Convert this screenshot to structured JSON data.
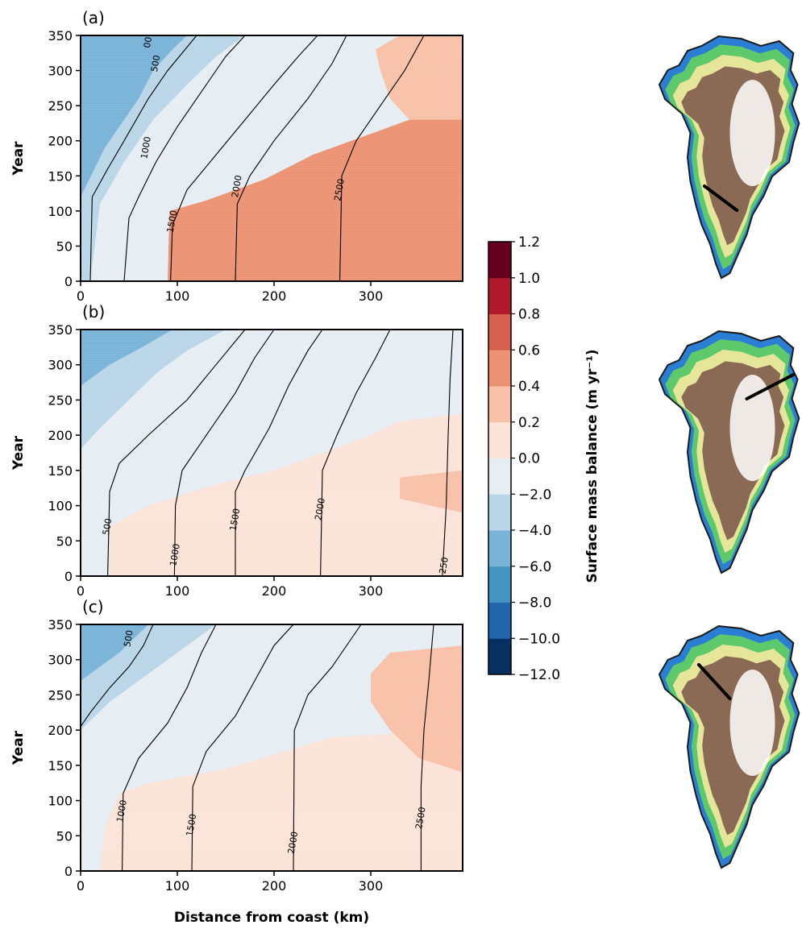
{
  "colors": {
    "smb_scale": [
      "#053061",
      "#2166ac",
      "#4393c3",
      "#79b3d8",
      "#b9d6e8",
      "#e6edf3",
      "#fbe3d8",
      "#f8c1a8",
      "#ec9272",
      "#d6604d",
      "#b2182b",
      "#67001f"
    ],
    "contour": "#000000",
    "map_ocean_edge": "#1a1a1a",
    "map_coast": "#2a7fd4",
    "map_green": "#5ec96b",
    "map_yellow": "#e6e69a",
    "map_brown": "#8a6a55",
    "map_white": "#ffffff",
    "transect": "#000000"
  },
  "chart_data": [
    {
      "type": "heatmap",
      "panel_label": "(a)",
      "xlabel": "",
      "ylabel": "Year",
      "xlim": [
        0,
        395
      ],
      "ylim": [
        0,
        350
      ],
      "xticks": [
        "0",
        "100",
        "200",
        "300"
      ],
      "yticks": [
        "0",
        "50",
        "100",
        "150",
        "200",
        "250",
        "300",
        "350"
      ],
      "zones": [
        {
          "class": 6,
          "boundary": [
            [
              560,
              0
            ],
            [
              560,
              350
            ]
          ]
        },
        {
          "class": 7,
          "boundary": [
            [
              395,
              0
            ],
            [
              395,
              200
            ],
            [
              340,
              230
            ],
            [
              320,
              260
            ],
            [
              310,
              300
            ],
            [
              305,
              330
            ],
            [
              330,
              350
            ]
          ]
        },
        {
          "class": 8,
          "boundary": [
            [
              90,
              0
            ],
            [
              92,
              100
            ],
            [
              130,
              115
            ],
            [
              190,
              145
            ],
            [
              240,
              180
            ],
            [
              280,
              200
            ],
            [
              340,
              230
            ],
            [
              395,
              230
            ]
          ]
        },
        {
          "class": 5,
          "boundary": [
            [
              45,
              0
            ],
            [
              60,
              110
            ],
            [
              80,
              170
            ],
            [
              110,
              230
            ],
            [
              150,
              280
            ],
            [
              185,
              320
            ],
            [
              215,
              350
            ]
          ]
        },
        {
          "class": 4,
          "boundary": [
            [
              10,
              0
            ],
            [
              20,
              110
            ],
            [
              45,
              170
            ],
            [
              75,
              230
            ],
            [
              110,
              280
            ],
            [
              140,
              320
            ],
            [
              170,
              350
            ]
          ]
        },
        {
          "class": 3,
          "boundary": [
            [
              0,
              120
            ],
            [
              25,
              190
            ],
            [
              60,
              260
            ],
            [
              75,
              300
            ],
            [
              95,
              330
            ],
            [
              110,
              350
            ]
          ]
        }
      ],
      "contours": [
        {
          "label": "1000",
          "points": [
            [
              10,
              0
            ],
            [
              12,
              120
            ],
            [
              28,
              160
            ],
            [
              45,
              200
            ],
            [
              70,
              260
            ],
            [
              90,
              300
            ],
            [
              120,
              350
            ]
          ]
        },
        {
          "label": "1500",
          "points": [
            [
              45,
              0
            ],
            [
              50,
              90
            ],
            [
              60,
              120
            ],
            [
              78,
              170
            ],
            [
              100,
              220
            ],
            [
              130,
              280
            ],
            [
              150,
              320
            ],
            [
              170,
              350
            ]
          ]
        },
        {
          "label": "2000",
          "points": [
            [
              93,
              0
            ],
            [
              95,
              80
            ],
            [
              110,
              130
            ],
            [
              140,
              180
            ],
            [
              170,
              230
            ],
            [
              200,
              280
            ],
            [
              225,
              320
            ],
            [
              245,
              350
            ]
          ]
        },
        {
          "label": "2500",
          "points": [
            [
              160,
              0
            ],
            [
              162,
              110
            ],
            [
              175,
              150
            ],
            [
              200,
              200
            ],
            [
              235,
              260
            ],
            [
              260,
              310
            ],
            [
              275,
              350
            ]
          ]
        },
        {
          "label": "",
          "points": [
            [
              268,
              0
            ],
            [
              270,
              150
            ],
            [
              285,
              200
            ],
            [
              310,
              250
            ],
            [
              335,
              300
            ],
            [
              355,
              350
            ]
          ]
        }
      ],
      "contour_label_positions": [
        {
          "text": "00",
          "x": 70,
          "y": 340
        },
        {
          "text": "500",
          "x": 78,
          "y": 310
        },
        {
          "text": "1000",
          "x": 68,
          "y": 190
        },
        {
          "text": "1500",
          "x": 95,
          "y": 85
        },
        {
          "text": "2000",
          "x": 162,
          "y": 135
        },
        {
          "text": "2500",
          "x": 268,
          "y": 130
        }
      ]
    },
    {
      "type": "heatmap",
      "panel_label": "(b)",
      "xlabel": "",
      "ylabel": "Year",
      "xlim": [
        0,
        395
      ],
      "ylim": [
        0,
        350
      ],
      "xticks": [
        "0",
        "100",
        "200",
        "300"
      ],
      "yticks": [
        "0",
        "50",
        "100",
        "150",
        "200",
        "250",
        "300",
        "350"
      ],
      "zones": [
        {
          "class": 6,
          "boundary": [
            [
              30,
              0
            ],
            [
              30,
              70
            ],
            [
              70,
              100
            ],
            [
              140,
              130
            ],
            [
              200,
              150
            ],
            [
              260,
              180
            ],
            [
              300,
              200
            ],
            [
              330,
              220
            ],
            [
              395,
              230
            ]
          ]
        },
        {
          "class": 7,
          "boundary": [
            [
              395,
              90
            ],
            [
              330,
              110
            ],
            [
              330,
              140
            ],
            [
              395,
              150
            ]
          ]
        },
        {
          "class": 5,
          "boundary": [
            [
              0,
              140
            ],
            [
              40,
              160
            ],
            [
              80,
              190
            ],
            [
              140,
              230
            ],
            [
              200,
              270
            ],
            [
              260,
              310
            ],
            [
              310,
              350
            ]
          ]
        },
        {
          "class": 4,
          "boundary": [
            [
              0,
              180
            ],
            [
              20,
              210
            ],
            [
              50,
              250
            ],
            [
              80,
              290
            ],
            [
              110,
              320
            ],
            [
              150,
              350
            ]
          ]
        },
        {
          "class": 3,
          "boundary": [
            [
              0,
              270
            ],
            [
              30,
              300
            ],
            [
              70,
              330
            ],
            [
              95,
              350
            ]
          ]
        }
      ],
      "contours": [
        {
          "label": "500",
          "points": [
            [
              28,
              0
            ],
            [
              30,
              120
            ],
            [
              40,
              160
            ],
            [
              70,
              200
            ],
            [
              110,
              250
            ],
            [
              140,
              300
            ],
            [
              170,
              350
            ]
          ]
        },
        {
          "label": "1000",
          "points": [
            [
              97,
              0
            ],
            [
              98,
              100
            ],
            [
              105,
              150
            ],
            [
              130,
              200
            ],
            [
              160,
              260
            ],
            [
              180,
              310
            ],
            [
              200,
              350
            ]
          ]
        },
        {
          "label": "1500",
          "points": [
            [
              160,
              0
            ],
            [
              160,
              120
            ],
            [
              170,
              150
            ],
            [
              195,
              210
            ],
            [
              215,
              270
            ],
            [
              235,
              320
            ],
            [
              250,
              350
            ]
          ]
        },
        {
          "label": "2000",
          "points": [
            [
              248,
              0
            ],
            [
              250,
              150
            ],
            [
              265,
              200
            ],
            [
              285,
              260
            ],
            [
              305,
              310
            ],
            [
              320,
              350
            ]
          ]
        },
        {
          "label": "250",
          "points": [
            [
              374,
              0
            ],
            [
              378,
              100
            ],
            [
              380,
              200
            ],
            [
              382,
              280
            ],
            [
              385,
              350
            ]
          ]
        }
      ],
      "contour_label_positions": [
        {
          "text": "500",
          "x": 28,
          "y": 70
        },
        {
          "text": "1000",
          "x": 98,
          "y": 30
        },
        {
          "text": "1500",
          "x": 160,
          "y": 80
        },
        {
          "text": "2000",
          "x": 248,
          "y": 95
        },
        {
          "text": "250",
          "x": 376,
          "y": 15
        }
      ]
    },
    {
      "type": "heatmap",
      "panel_label": "(c)",
      "xlabel": "Distance from coast (km)",
      "ylabel": "Year",
      "xlim": [
        0,
        395
      ],
      "ylim": [
        0,
        350
      ],
      "xticks": [
        "0",
        "100",
        "200",
        "300"
      ],
      "yticks": [
        "0",
        "50",
        "100",
        "150",
        "200",
        "250",
        "300",
        "350"
      ],
      "zones": [
        {
          "class": 6,
          "boundary": [
            [
              20,
              0
            ],
            [
              25,
              60
            ],
            [
              40,
              110
            ],
            [
              70,
              125
            ],
            [
              150,
              145
            ],
            [
              200,
              165
            ],
            [
              260,
              190
            ],
            [
              395,
              200
            ]
          ]
        },
        {
          "class": 7,
          "boundary": [
            [
              395,
              140
            ],
            [
              350,
              160
            ],
            [
              320,
              200
            ],
            [
              300,
              240
            ],
            [
              300,
              280
            ],
            [
              320,
              310
            ],
            [
              395,
              320
            ]
          ]
        },
        {
          "class": 5,
          "boundary": [
            [
              0,
              120
            ],
            [
              40,
              150
            ],
            [
              90,
              190
            ],
            [
              150,
              230
            ],
            [
              210,
              280
            ],
            [
              260,
              320
            ],
            [
              310,
              350
            ]
          ]
        },
        {
          "class": 4,
          "boundary": [
            [
              0,
              200
            ],
            [
              30,
              240
            ],
            [
              70,
              280
            ],
            [
              110,
              320
            ],
            [
              140,
              350
            ]
          ]
        },
        {
          "class": 3,
          "boundary": [
            [
              0,
              270
            ],
            [
              20,
              290
            ],
            [
              40,
              310
            ],
            [
              55,
              330
            ],
            [
              70,
              350
            ]
          ]
        }
      ],
      "contours": [
        {
          "label": "500",
          "points": [
            [
              0,
              205
            ],
            [
              10,
              225
            ],
            [
              30,
              260
            ],
            [
              50,
              290
            ],
            [
              65,
              320
            ],
            [
              75,
              350
            ]
          ]
        },
        {
          "label": "1000",
          "points": [
            [
              43,
              0
            ],
            [
              44,
              110
            ],
            [
              60,
              160
            ],
            [
              90,
              210
            ],
            [
              110,
              260
            ],
            [
              125,
              310
            ],
            [
              140,
              350
            ]
          ]
        },
        {
          "label": "1500",
          "points": [
            [
              115,
              0
            ],
            [
              116,
              120
            ],
            [
              130,
              170
            ],
            [
              160,
              220
            ],
            [
              180,
              270
            ],
            [
              200,
              320
            ],
            [
              220,
              350
            ]
          ]
        },
        {
          "label": "2000",
          "points": [
            [
              220,
              0
            ],
            [
              221,
              200
            ],
            [
              235,
              250
            ],
            [
              260,
              290
            ],
            [
              280,
              330
            ],
            [
              290,
              350
            ]
          ]
        },
        {
          "label": "2500",
          "points": [
            [
              352,
              0
            ],
            [
              352,
              120
            ],
            [
              355,
              200
            ],
            [
              360,
              270
            ],
            [
              365,
              350
            ]
          ]
        }
      ],
      "contour_label_positions": [
        {
          "text": "500",
          "x": 50,
          "y": 330
        },
        {
          "text": "1000",
          "x": 43,
          "y": 85
        },
        {
          "text": "1500",
          "x": 115,
          "y": 65
        },
        {
          "text": "2000",
          "x": 220,
          "y": 40
        },
        {
          "text": "2500",
          "x": 352,
          "y": 75
        }
      ]
    }
  ],
  "colorbar": {
    "title": "Surface mass balance (m yr⁻¹)",
    "tick_labels": [
      "−12.0",
      "−10.0",
      "−8.0",
      "−6.0",
      "−4.0",
      "−2.0",
      "0.0",
      "0.2",
      "0.4",
      "0.6",
      "0.8",
      "1.0",
      "1.2"
    ]
  },
  "maps": [
    {
      "name": "map-a",
      "transect": [
        [
          0.32,
          0.62
        ],
        [
          0.55,
          0.72
        ]
      ]
    },
    {
      "name": "map-b",
      "transect": [
        [
          0.62,
          0.28
        ],
        [
          0.95,
          0.18
        ]
      ]
    },
    {
      "name": "map-c",
      "transect": [
        [
          0.28,
          0.16
        ],
        [
          0.5,
          0.3
        ]
      ]
    }
  ]
}
